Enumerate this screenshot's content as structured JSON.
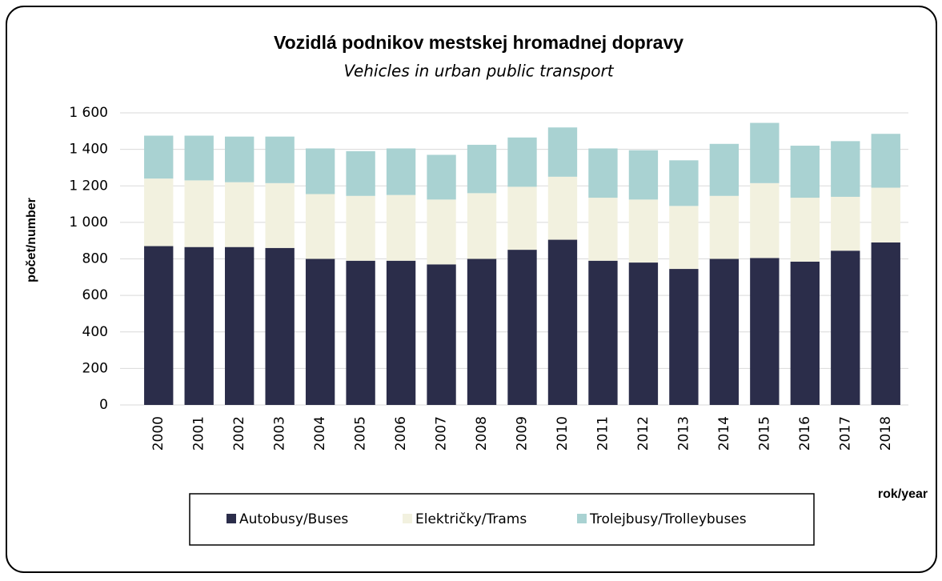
{
  "chart_data": {
    "type": "stacked_bar",
    "title": "Vozidlá podnikov mestskej hromadnej dopravy",
    "subtitle": "Vehicles in urban public transport",
    "y_label": "počet/number",
    "x_label": "rok/year",
    "categories": [
      "2000",
      "2001",
      "2002",
      "2003",
      "2004",
      "2005",
      "2006",
      "2007",
      "2008",
      "2009",
      "2010",
      "2011",
      "2012",
      "2013",
      "2014",
      "2015",
      "2016",
      "2017",
      "2018"
    ],
    "series": [
      {
        "name": "Autobusy/Buses",
        "color": "#2b2d4a",
        "values": [
          870,
          865,
          865,
          860,
          800,
          790,
          790,
          770,
          800,
          850,
          905,
          790,
          780,
          745,
          800,
          805,
          785,
          845,
          890
        ]
      },
      {
        "name": "Električky/Trams",
        "color": "#f2f1df",
        "values": [
          370,
          365,
          355,
          355,
          355,
          355,
          360,
          355,
          360,
          345,
          345,
          345,
          345,
          345,
          345,
          410,
          350,
          295,
          300
        ]
      },
      {
        "name": "Trolejbusy/Trolleybuses",
        "color": "#a9d2d2",
        "values": [
          235,
          245,
          250,
          255,
          250,
          245,
          255,
          245,
          265,
          270,
          270,
          270,
          270,
          250,
          285,
          330,
          285,
          305,
          295
        ]
      }
    ],
    "ylim": [
      0,
      1600
    ],
    "yticks": [
      0,
      200,
      400,
      600,
      800,
      {
        "value": 1000,
        "label": "1 000"
      },
      {
        "value": 1200,
        "label": "1 200"
      },
      {
        "value": 1400,
        "label": "1 400"
      },
      {
        "value": 1600,
        "label": "1 600"
      }
    ],
    "grid": true,
    "legend": "bottom"
  }
}
